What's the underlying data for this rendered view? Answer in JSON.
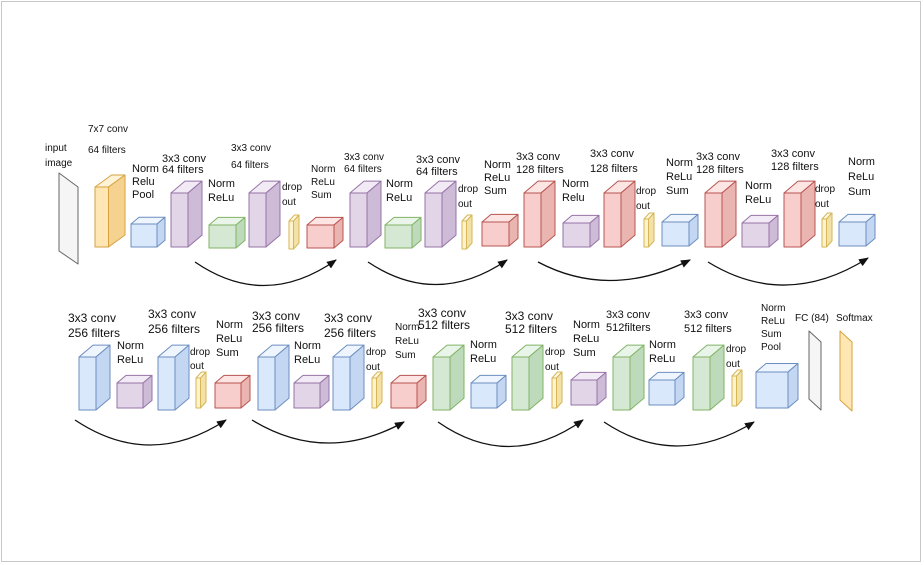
{
  "colors": {
    "gray": {
      "front": "#f5f5f5",
      "top": "#ffffff",
      "side": "#e4e4e4",
      "stroke": "#666666"
    },
    "orange": {
      "front": "#ffe6b3",
      "top": "#fff2d6",
      "side": "#f5d28f",
      "stroke": "#d6a23f"
    },
    "blue": {
      "front": "#dae8fc",
      "top": "#eef5ff",
      "side": "#c3d7f3",
      "stroke": "#6c8ebf"
    },
    "purple": {
      "front": "#e1d5e7",
      "top": "#f2ebf6",
      "side": "#cdbbd8",
      "stroke": "#9673a6"
    },
    "green": {
      "front": "#d5e8d4",
      "top": "#e9f5e8",
      "side": "#bddbbb",
      "stroke": "#82b366"
    },
    "red": {
      "front": "#f8cecc",
      "top": "#fde5e4",
      "side": "#eab4b1",
      "stroke": "#b85450"
    },
    "yellow": {
      "front": "#fff2cc",
      "top": "#fffae6",
      "side": "#f2e2a8",
      "stroke": "#d6b656"
    }
  },
  "labels": {
    "row1": {
      "input": [
        "input",
        "image"
      ],
      "conv7": [
        "7x7 conv",
        "64 filters"
      ],
      "pool1": [
        "Norm",
        "Relu",
        "Pool"
      ],
      "b1_conv1": [
        "3x3 conv",
        "64 filters"
      ],
      "b1_norm1": [
        "Norm",
        "ReLu"
      ],
      "b1_conv2": [
        "3x3 conv",
        "64 filters"
      ],
      "b1_drop": [
        "drop",
        "out"
      ],
      "b1_sum": [
        "Norm",
        "ReLu",
        "Sum"
      ],
      "b2_conv1": [
        "3x3 conv",
        "64 filters"
      ],
      "b2_norm1": [
        "Norm",
        "ReLu"
      ],
      "b2_conv2": [
        "3x3 conv",
        "64 filters"
      ],
      "b2_drop": [
        "drop",
        "out"
      ],
      "b2_sum": [
        "Norm",
        "ReLu",
        "Sum"
      ],
      "b3_conv1": [
        "3x3 conv",
        "128 filters"
      ],
      "b3_norm1": [
        "Norm",
        "Relu"
      ],
      "b3_conv2": [
        "3x3 conv",
        "128 filters"
      ],
      "b3_drop": [
        "drop",
        "out"
      ],
      "b3_sum": [
        "Norm",
        "ReLu",
        "Sum"
      ],
      "b4_conv1": [
        "3x3 conv",
        "128 filters"
      ],
      "b4_norm1": [
        "Norm",
        "ReLu"
      ],
      "b4_conv2": [
        "3x3 conv",
        "128 filters"
      ],
      "b4_drop": [
        "drop",
        "out"
      ],
      "b4_sum": [
        "Norm",
        "ReLu",
        "Sum"
      ]
    },
    "row2": {
      "b5_conv1": [
        "3x3 conv",
        "256 filters"
      ],
      "b5_norm1": [
        "Norm",
        "ReLu"
      ],
      "b5_conv2": [
        "3x3 conv",
        "256 filters"
      ],
      "b5_drop": [
        "drop",
        "out"
      ],
      "b5_sum": [
        "Norm",
        "ReLu",
        "Sum"
      ],
      "b6_conv1": [
        "3x3 conv",
        "256 filters"
      ],
      "b6_norm1": [
        "Norm",
        "ReLu"
      ],
      "b6_conv2": [
        "3x3 conv",
        "256 filters"
      ],
      "b6_drop": [
        "drop",
        "out"
      ],
      "b6_sum": [
        "Norm",
        "ReLu",
        "Sum"
      ],
      "b7_conv1": [
        "3x3 conv",
        "512 filters"
      ],
      "b7_norm1": [
        "Norm",
        "ReLu"
      ],
      "b7_conv2": [
        "3x3 conv",
        "512 filters"
      ],
      "b7_drop": [
        "drop",
        "out"
      ],
      "b7_sum": [
        "Norm",
        "ReLu",
        "Sum"
      ],
      "b8_conv1": [
        "3x3 conv",
        "512filters"
      ],
      "b8_norm1": [
        "Norm",
        "ReLu"
      ],
      "b8_conv2": [
        "3x3 conv",
        "512 filters"
      ],
      "b8_drop": [
        "drop",
        "out"
      ],
      "final_pool": [
        "Norm",
        "ReLu",
        "Sum",
        "Pool"
      ],
      "fc": "FC (84)",
      "softmax": "Softmax"
    }
  }
}
